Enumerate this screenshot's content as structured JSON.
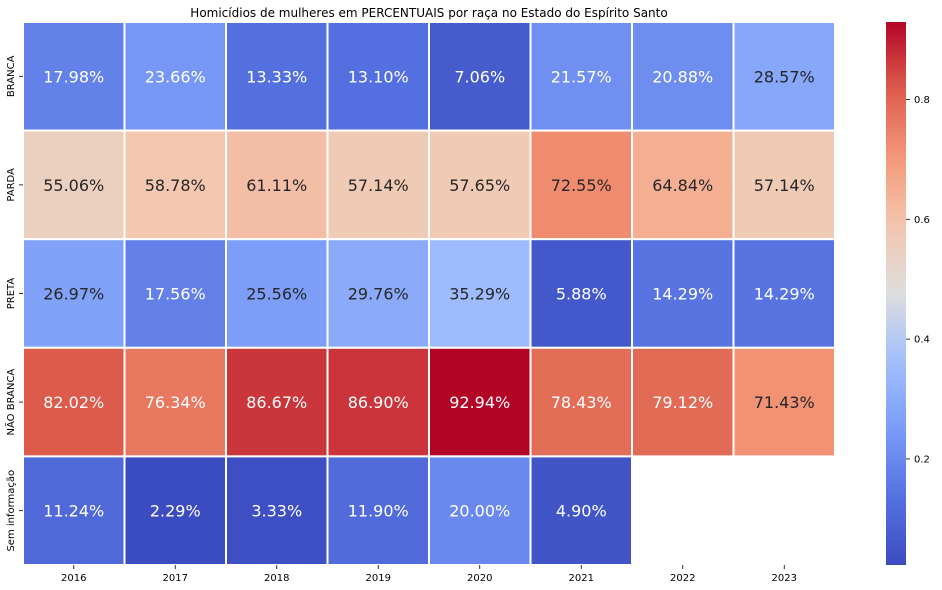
{
  "chart_data": {
    "type": "heatmap",
    "title": "Homicídios de mulheres em PERCENTUAIS por raça no Estado do Espírito Santo",
    "x_categories": [
      "2016",
      "2017",
      "2018",
      "2019",
      "2020",
      "2021",
      "2022",
      "2023"
    ],
    "y_categories": [
      "BRANCA",
      "PARDA",
      "PRETA",
      "NÃO BRANCA",
      "Sem informação"
    ],
    "values": [
      [
        0.1798,
        0.2366,
        0.1333,
        0.131,
        0.0706,
        0.2157,
        0.2088,
        0.2857
      ],
      [
        0.5506,
        0.5878,
        0.6111,
        0.5714,
        0.5765,
        0.7255,
        0.6484,
        0.5714
      ],
      [
        0.2697,
        0.1756,
        0.2556,
        0.2976,
        0.3529,
        0.0588,
        0.1429,
        0.1429
      ],
      [
        0.8202,
        0.7634,
        0.8667,
        0.869,
        0.9294,
        0.7843,
        0.7912,
        0.7143
      ],
      [
        0.1124,
        0.0229,
        0.0333,
        0.119,
        0.2,
        0.049,
        null,
        null
      ]
    ],
    "annotations": [
      [
        "17.98%",
        "23.66%",
        "13.33%",
        "13.10%",
        "7.06%",
        "21.57%",
        "20.88%",
        "28.57%"
      ],
      [
        "55.06%",
        "58.78%",
        "61.11%",
        "57.14%",
        "57.65%",
        "72.55%",
        "64.84%",
        "57.14%"
      ],
      [
        "26.97%",
        "17.56%",
        "25.56%",
        "29.76%",
        "35.29%",
        "5.88%",
        "14.29%",
        "14.29%"
      ],
      [
        "82.02%",
        "76.34%",
        "86.67%",
        "86.90%",
        "92.94%",
        "78.43%",
        "79.12%",
        "71.43%"
      ],
      [
        "11.24%",
        "2.29%",
        "3.33%",
        "11.90%",
        "20.00%",
        "4.90%",
        "",
        ""
      ]
    ],
    "colormap": "coolwarm",
    "vmin": 0.0229,
    "vmax": 0.9294,
    "colorbar_ticks": [
      0.2,
      0.4,
      0.6,
      0.8
    ],
    "colorbar_tick_labels": [
      "0.2",
      "0.4",
      "0.6",
      "0.8"
    ],
    "cell_border_color": "#ffffff",
    "text_color_light": "#ffffff",
    "text_color_dark": "#262626"
  }
}
